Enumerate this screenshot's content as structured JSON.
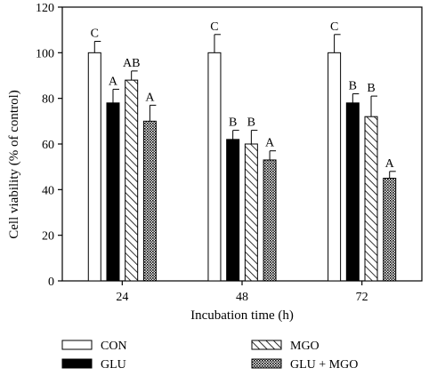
{
  "chart_data": {
    "type": "bar",
    "title": "",
    "xlabel": "Incubation time (h)",
    "ylabel": "Cell viability (% of control)",
    "ylim": [
      0,
      120
    ],
    "yticks": [
      0,
      20,
      40,
      60,
      80,
      100,
      120
    ],
    "categories": [
      "24",
      "48",
      "72"
    ],
    "grid": false,
    "legend_position": "bottom",
    "series": [
      {
        "name": "CON",
        "pattern": "white",
        "values": [
          100,
          100,
          100
        ],
        "errors": [
          5,
          8,
          8
        ],
        "letters": [
          "C",
          "C",
          "C"
        ]
      },
      {
        "name": "GLU",
        "pattern": "black",
        "values": [
          78,
          62,
          78
        ],
        "errors": [
          6,
          4,
          4
        ],
        "letters": [
          "A",
          "B",
          "B"
        ]
      },
      {
        "name": "MGO",
        "pattern": "hatch",
        "values": [
          88,
          60,
          72
        ],
        "errors": [
          4,
          6,
          9
        ],
        "letters": [
          "AB",
          "B",
          "B"
        ]
      },
      {
        "name": "GLU + MGO",
        "pattern": "crosshatch",
        "values": [
          70,
          53,
          45
        ],
        "errors": [
          7,
          4,
          3
        ],
        "letters": [
          "A",
          "A",
          "A"
        ]
      }
    ]
  }
}
